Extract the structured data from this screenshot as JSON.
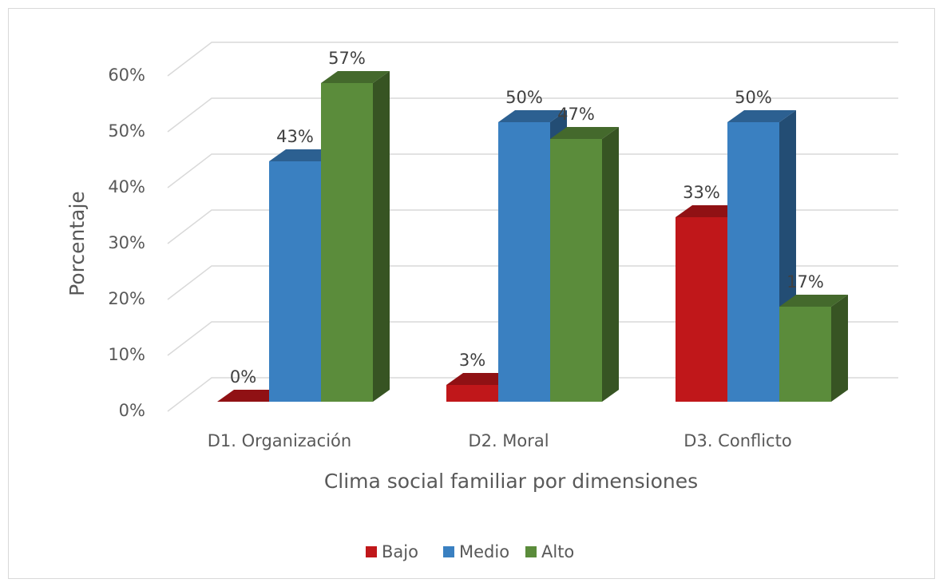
{
  "chart_data": {
    "type": "bar3d",
    "x_label": "Clima social familiar por dimensiones",
    "y_label": "Porcentaje",
    "categories": [
      "D1. Organización",
      "D2. Moral",
      "D3. Conflicto"
    ],
    "series": [
      {
        "name": "Bajo",
        "color": "#c0171a",
        "values": [
          0,
          3,
          33
        ],
        "value_labels": [
          "0%",
          "3%",
          "33%"
        ]
      },
      {
        "name": "Medio",
        "color": "#3a80c1",
        "values": [
          43,
          50,
          50
        ],
        "value_labels": [
          "43%",
          "50%",
          "50%"
        ]
      },
      {
        "name": "Alto",
        "color": "#5b8c3b",
        "values": [
          57,
          47,
          17
        ],
        "value_labels": [
          "57%",
          "47%",
          "17%"
        ]
      }
    ],
    "ylim": [
      0,
      60
    ],
    "yticks": [
      {
        "value": 0,
        "label": "0%"
      },
      {
        "value": 10,
        "label": "10%"
      },
      {
        "value": 20,
        "label": "20%"
      },
      {
        "value": 30,
        "label": "30%"
      },
      {
        "value": 40,
        "label": "40%"
      },
      {
        "value": 50,
        "label": "50%"
      },
      {
        "value": 60,
        "label": "60%"
      }
    ],
    "grid": true,
    "legend": "bottom"
  }
}
